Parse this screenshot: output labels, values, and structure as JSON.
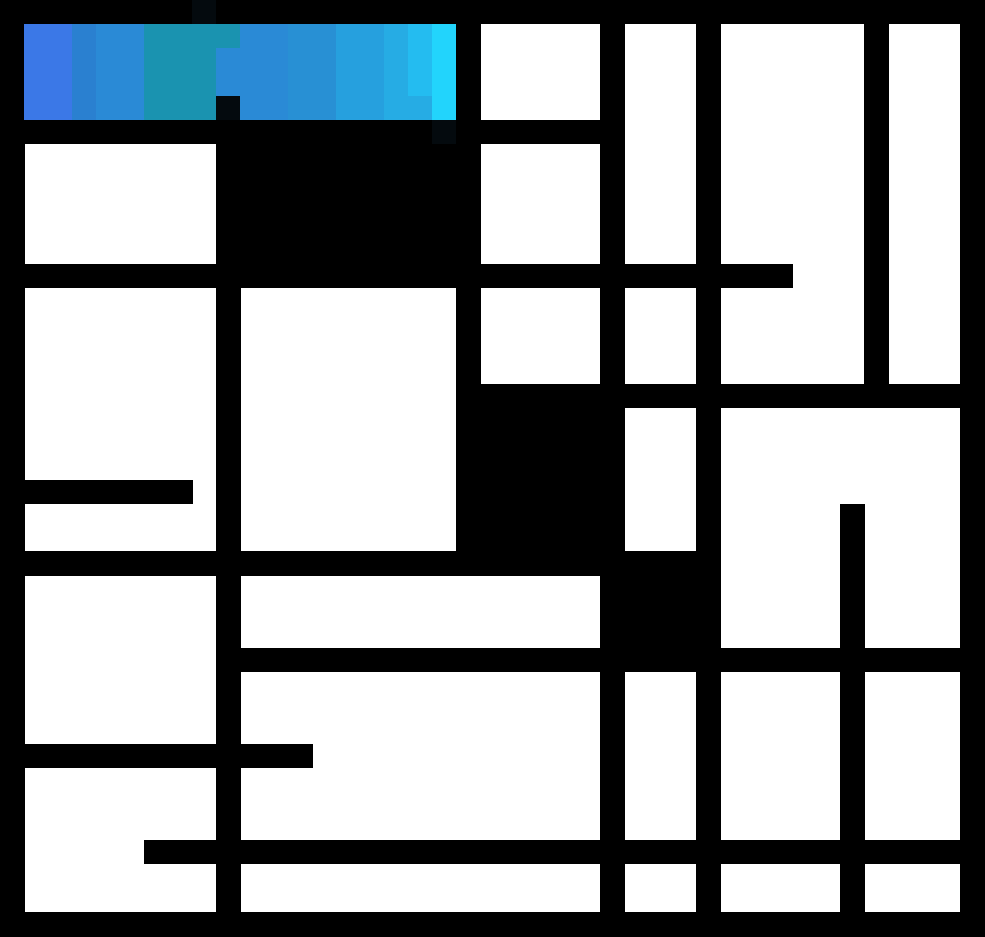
{
  "game": {
    "colors": {
      "background": "#000000",
      "cell": "#ffffff",
      "shadow": "#040a0e"
    },
    "path_colors": [
      "#3b78e7",
      "#2a80d0",
      "#2a8ad6",
      "#1a93b0",
      "#2890d4",
      "#26a0de",
      "#26ace4",
      "#24bcf0",
      "#22d4fc"
    ]
  }
}
